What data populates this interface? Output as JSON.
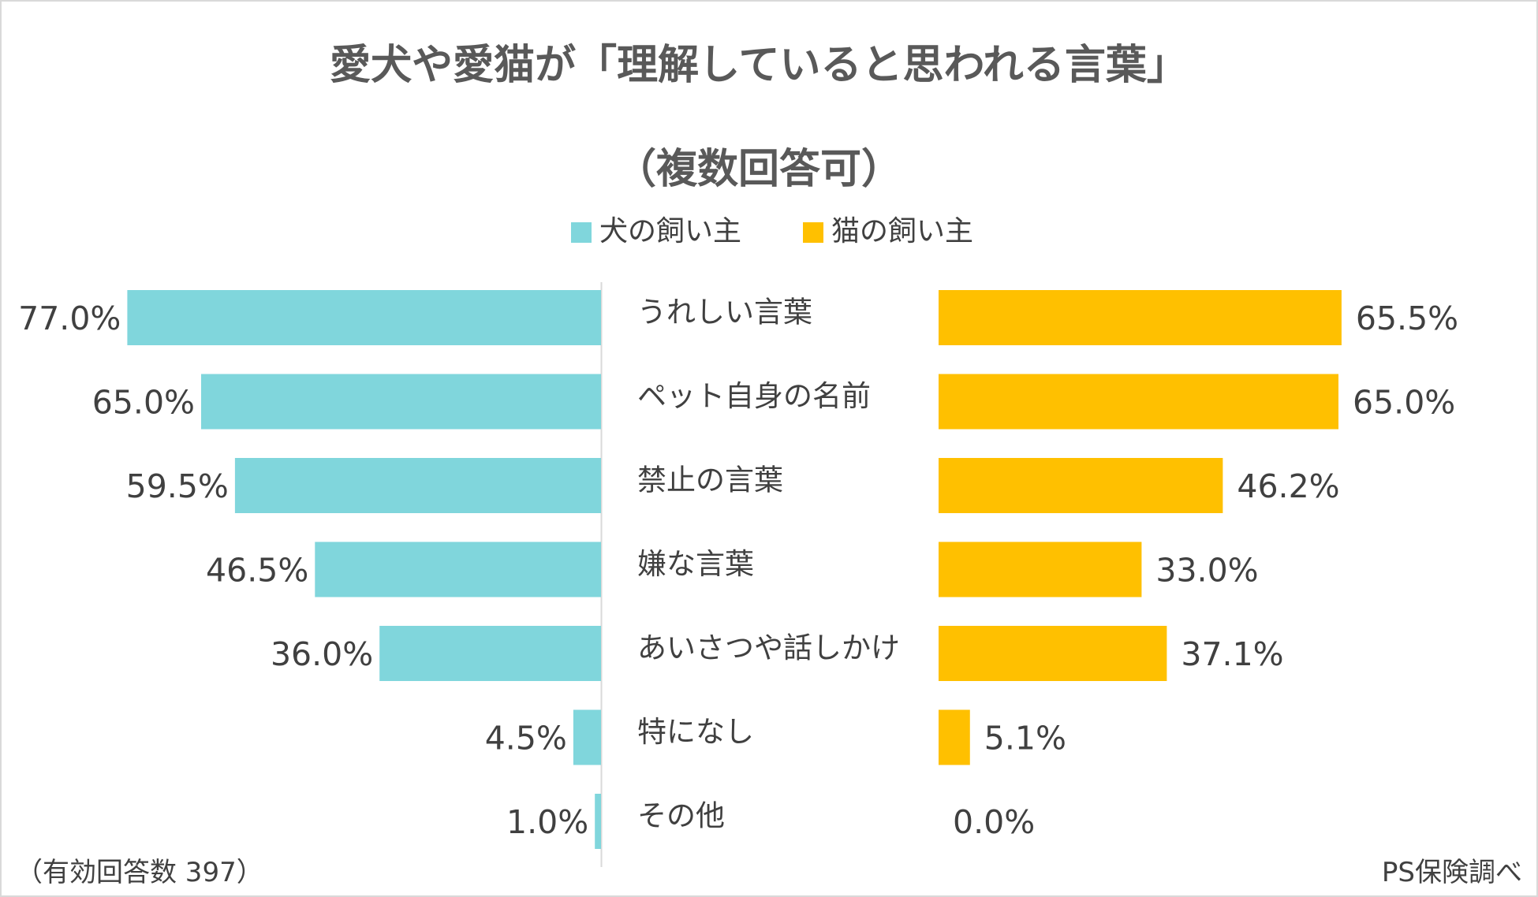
{
  "chart_data": {
    "type": "bar",
    "orientation": "horizontal-butterfly",
    "title": "愛犬や愛猫が「理解していると思われる言葉」",
    "subtitle": "（複数回答可）",
    "categories": [
      "うれしい言葉",
      "ペット自身の名前",
      "禁止の言葉",
      "嫌な言葉",
      "あいさつや話しかけ",
      "特になし",
      "その他"
    ],
    "series": [
      {
        "name": "犬の飼い主",
        "color": "#80D6DC",
        "side": "left",
        "values": [
          77.0,
          65.0,
          59.5,
          46.5,
          36.0,
          4.5,
          1.0
        ],
        "labels": [
          "77.0%",
          "65.0%",
          "59.5%",
          "46.5%",
          "36.0%",
          "4.5%",
          "1.0%"
        ]
      },
      {
        "name": "猫の飼い主",
        "color": "#FFC000",
        "side": "right",
        "values": [
          65.5,
          65.0,
          46.2,
          33.0,
          37.1,
          5.1,
          0.0
        ],
        "labels": [
          "65.5%",
          "65.0%",
          "46.2%",
          "33.0%",
          "37.1%",
          "5.1%",
          "0.0%"
        ]
      }
    ],
    "value_unit": "%",
    "legend_position": "top-center",
    "grid": false,
    "ylim": [
      0,
      100
    ]
  },
  "footer": {
    "note": "（有効回答数 397）",
    "source": "PS保険調べ"
  }
}
